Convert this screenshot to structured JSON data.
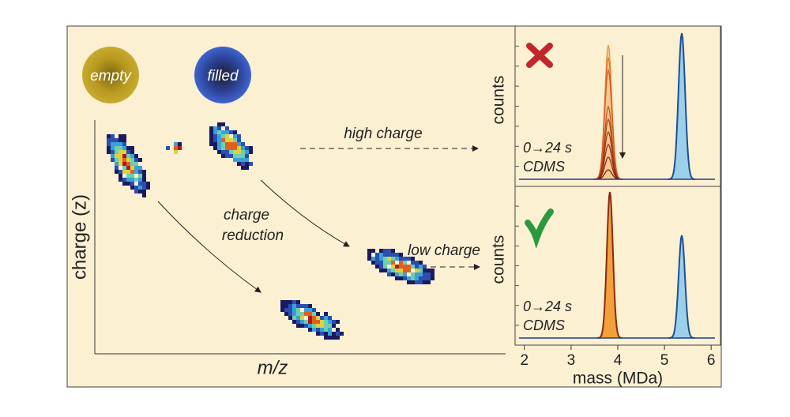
{
  "figure": {
    "labels": {
      "empty": "empty",
      "filled": "filled",
      "high_charge": "high charge",
      "charge_reduction": [
        "charge",
        "reduction"
      ],
      "low_charge": "low charge",
      "y_axis": "charge (z)",
      "x_axis": "m/z"
    },
    "panels": [
      {
        "y_axis": "counts",
        "time": "0→24 s",
        "method": "CDMS"
      },
      {
        "y_axis": "counts",
        "time": "0→24 s",
        "method": "CDMS"
      }
    ],
    "mass_axis": {
      "label": "mass (MDa)",
      "lim": [
        1.8,
        6.2
      ],
      "ticks": [
        2,
        3,
        4,
        5,
        6
      ]
    }
  }
}
